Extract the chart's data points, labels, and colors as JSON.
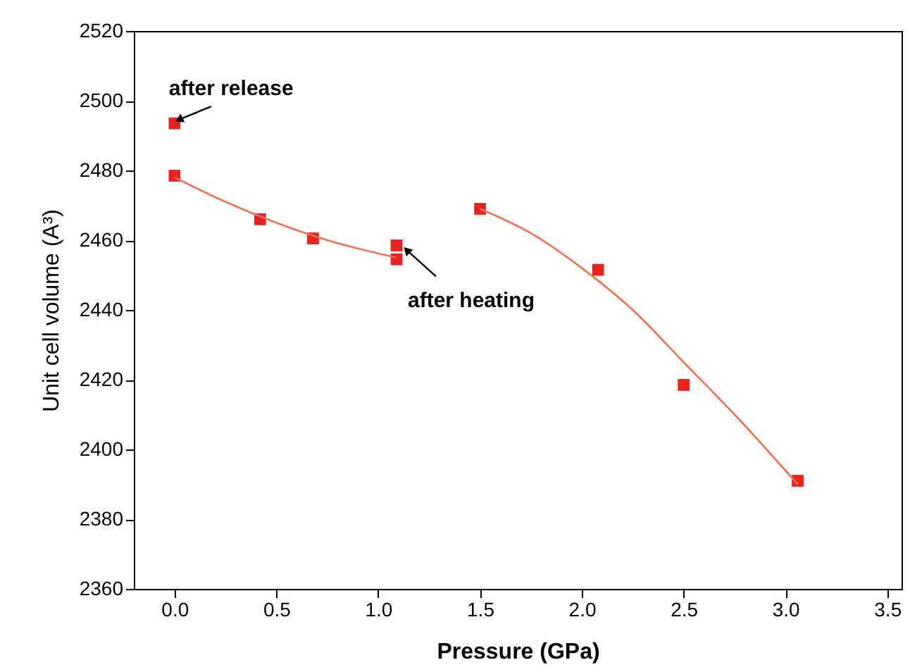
{
  "chart_data": {
    "type": "scatter",
    "xlabel": "Pressure (GPa)",
    "ylabel": "Unit cell volume (A³)",
    "xlim": [
      -0.2,
      3.57
    ],
    "xticks": [
      {
        "value": 0,
        "label": "0.0"
      },
      {
        "value": 0.5,
        "label": "0.5"
      },
      {
        "value": 1,
        "label": "1.0"
      },
      {
        "value": 1.5,
        "label": "1.5"
      },
      {
        "value": 2,
        "label": "2.0"
      },
      {
        "value": 2.5,
        "label": "2.5"
      },
      {
        "value": 3,
        "label": "3.0"
      },
      {
        "value": 3.5,
        "label": "3.5"
      }
    ],
    "ylim": [
      2360,
      2520
    ],
    "yticks": [
      2360,
      2380,
      2400,
      2420,
      2440,
      2460,
      2480,
      2500,
      2520
    ],
    "grid": false,
    "series": [
      {
        "marker": "square",
        "color": "#e8231f",
        "x": [
          0,
          0,
          0.42,
          0.68,
          1.09,
          1.09,
          1.5,
          2.08,
          2.5,
          3.06
        ],
        "values": [
          2493.5,
          2478.5,
          2466,
          2460.5,
          2458.5,
          2454.5,
          2469,
          2451.5,
          2418.5,
          2391
        ]
      },
      {
        "type": "line",
        "marker": "none",
        "color": "#f07050",
        "x": [
          0,
          0.25,
          0.5,
          0.75,
          1.09
        ],
        "values": [
          2478,
          2471,
          2465,
          2460,
          2455
        ]
      },
      {
        "type": "line",
        "marker": "none",
        "color": "#f07050",
        "x": [
          1.5,
          1.75,
          2,
          2.25,
          2.5,
          2.75,
          3.06
        ],
        "values": [
          2469,
          2462,
          2452,
          2440,
          2425,
          2410,
          2390
        ]
      }
    ],
    "annotations": [
      {
        "text": "after release",
        "x": 0,
        "y": 2493.5
      },
      {
        "text": "after heating",
        "x": 1.09,
        "y": 2458.5
      }
    ]
  }
}
